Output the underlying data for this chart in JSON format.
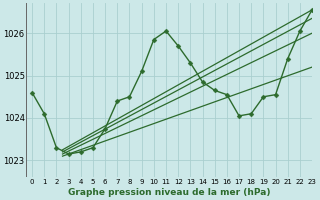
{
  "title": "Graphe pression niveau de la mer (hPa)",
  "xlim": [
    -0.5,
    23
  ],
  "ylim": [
    1022.6,
    1026.7
  ],
  "yticks": [
    1023,
    1024,
    1025,
    1026
  ],
  "xticks": [
    0,
    1,
    2,
    3,
    4,
    5,
    6,
    7,
    8,
    9,
    10,
    11,
    12,
    13,
    14,
    15,
    16,
    17,
    18,
    19,
    20,
    21,
    22,
    23
  ],
  "background_color": "#cce8e8",
  "grid_color": "#aacfcf",
  "line_color": "#2d6b2d",
  "series_main": {
    "x": [
      0,
      1,
      2,
      3,
      4,
      5,
      6,
      7,
      8,
      9,
      10,
      11,
      12,
      13,
      14,
      15,
      16,
      17,
      18,
      19,
      20,
      21,
      22,
      23
    ],
    "y": [
      1024.6,
      1024.1,
      1023.3,
      1023.15,
      1023.2,
      1023.3,
      1023.75,
      1024.4,
      1024.5,
      1025.1,
      1025.85,
      1026.05,
      1025.7,
      1025.3,
      1024.85,
      1024.65,
      1024.55,
      1024.05,
      1024.1,
      1024.5,
      1024.55,
      1025.4,
      1026.05,
      1026.55
    ]
  },
  "series_straight": [
    {
      "x": [
        2.5,
        23
      ],
      "y": [
        1023.25,
        1026.55
      ]
    },
    {
      "x": [
        2.5,
        23
      ],
      "y": [
        1023.2,
        1026.35
      ]
    },
    {
      "x": [
        2.5,
        23
      ],
      "y": [
        1023.15,
        1026.0
      ]
    },
    {
      "x": [
        2.5,
        23
      ],
      "y": [
        1023.1,
        1025.2
      ]
    }
  ]
}
